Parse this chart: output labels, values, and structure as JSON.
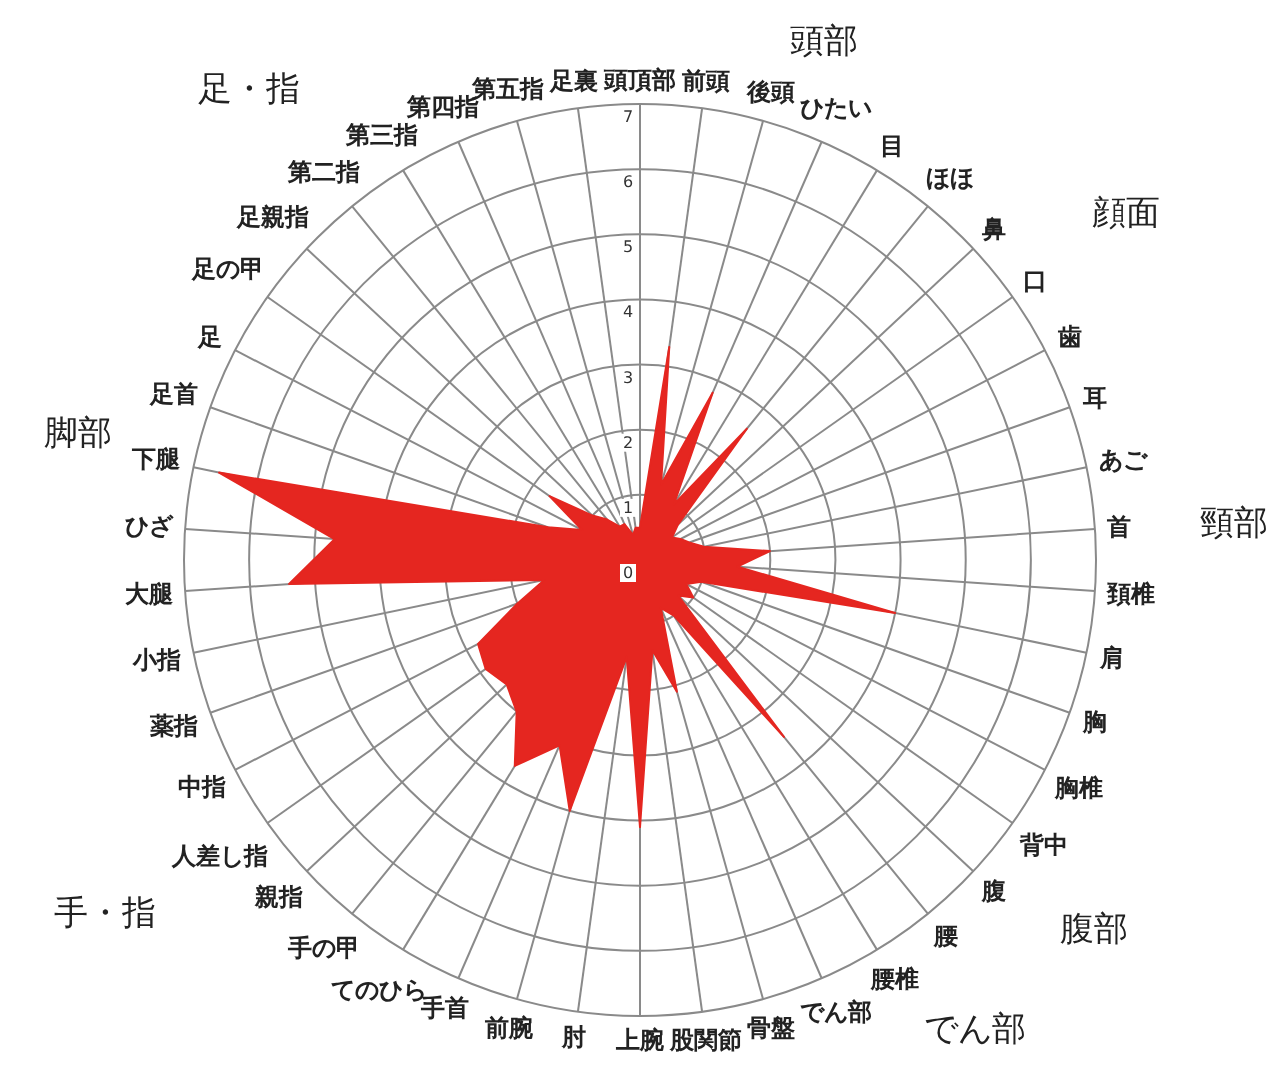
{
  "chart_data": {
    "type": "radar",
    "categories": [
      "頭頂部",
      "前頭",
      "後頭",
      "ひたい",
      "目",
      "ほほ",
      "鼻",
      "口",
      "歯",
      "耳",
      "あご",
      "首",
      "頚椎",
      "肩",
      "胸",
      "胸椎",
      "背中",
      "腹",
      "腰",
      "腰椎",
      "でん部",
      "骨盤",
      "股関節",
      "上腕",
      "肘",
      "前腕",
      "手首",
      "てのひら",
      "手の甲",
      "親指",
      "人差し指",
      "中指",
      "薬指",
      "小指",
      "大腿",
      "ひざ",
      "下腿",
      "足首",
      "足",
      "足の甲",
      "足親指",
      "第二指",
      "第三指",
      "第四指",
      "第五指",
      "足裏"
    ],
    "series": [
      {
        "color": "#e52620",
        "values": [
          0.5,
          3.3,
          1.2,
          2.8,
          1.0,
          2.6,
          0.8,
          0.6,
          0.7,
          0.8,
          1.0,
          2.0,
          1.5,
          4.0,
          1.0,
          0.8,
          1.0,
          0.8,
          3.5,
          1.0,
          0.8,
          2.1,
          1.4,
          4.1,
          1.5,
          4.0,
          3.1,
          3.7,
          3.0,
          2.8,
          2.9,
          2.8,
          2.0,
          1.5,
          5.4,
          4.7,
          6.6,
          1.5,
          1.0,
          1.7,
          1.0,
          0.8,
          0.6,
          0.6,
          0.4,
          0.5
        ]
      }
    ],
    "ylim": [
      0,
      7
    ],
    "yticks": [
      0,
      1,
      2,
      3,
      4,
      5,
      6,
      7
    ],
    "grid": true,
    "annotations": [
      "頭部",
      "顔面",
      "頸部",
      "腹部",
      "でん部",
      "手・指",
      "脚部",
      "足・指"
    ]
  }
}
